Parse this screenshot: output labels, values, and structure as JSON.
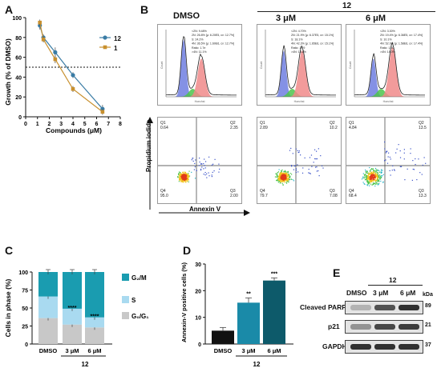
{
  "panels": {
    "A": {
      "label": "A",
      "chart_data": {
        "type": "line",
        "xlabel": "Compounds (μM)",
        "ylabel": "Growth (% of DMSO)",
        "xlim": [
          0,
          8
        ],
        "ylim": [
          0,
          100
        ],
        "xticks": [
          "0",
          "1",
          "2",
          "3",
          "4",
          "5",
          "6",
          "7",
          "8"
        ],
        "yticks": [
          "0",
          "20",
          "40",
          "60",
          "80",
          "100"
        ],
        "reference_line": 50,
        "series": [
          {
            "name": "12",
            "color": "#3a7ca5",
            "x": [
              1.2,
              1.5,
              2.5,
              4.0,
              6.5
            ],
            "y": [
              92,
              80,
              65,
              42,
              8
            ],
            "err": [
              4,
              3,
              5,
              3,
              4
            ]
          },
          {
            "name": "1",
            "color": "#c8902e",
            "x": [
              1.2,
              1.5,
              2.5,
              4.0,
              6.5
            ],
            "y": [
              95,
              78,
              58,
              28,
              5
            ],
            "err": [
              3,
              3,
              4,
              3,
              3
            ]
          }
        ]
      }
    },
    "B": {
      "label": "B",
      "group_label": "12",
      "conditions": [
        "DMSO",
        "3 μM",
        "6 μM"
      ],
      "hist_ylabel": "Count",
      "hist_xlabel": "Hoechst",
      "stats": [
        [
          "<2N: 9.48%",
          "2N: 26.8%  [μ: 6.20E5, cv: 12.7%]",
          "S: 24.2%",
          "4N: 36.5%  [μ: 1.60E6, cv: 12.7%]",
          "Ratio: 1.7e",
          ">4N: 11.1%"
        ],
        [
          "<2N: 4.70%",
          "2N: 21.9%  [μ: 6.37E5, cv: 15.1%]",
          "S: 18.1%",
          "4N: 42.3%  [μ: 1.65E6, cv: 15.1%]",
          "Ratio: 1.79",
          ">4N: 13.1%"
        ],
        [
          "<2N: 3.30%",
          "2N: 19.4%  [μ: 6.36E5, cv: 17.4%]",
          "S: 10.1%",
          "4N: 52.9%  [μ: 1.58E6, cv: 17.4%]",
          "Ratio: 1.70",
          ">4N: 14.0%"
        ]
      ],
      "scatter_ylabel": "Propidium iodide",
      "scatter_xlabel": "Annexin V",
      "quadrants": [
        {
          "Q1": "0.64",
          "Q2": "2.35",
          "Q3": "2.00",
          "Q4": "95.0"
        },
        {
          "Q1": "2.89",
          "Q2": "10.2",
          "Q3": "7.08",
          "Q4": "79.7"
        },
        {
          "Q1": "4.84",
          "Q2": "13.5",
          "Q3": "13.3",
          "Q4": "68.4"
        }
      ],
      "qlabels": [
        "Q1",
        "Q2",
        "Q3",
        "Q4"
      ]
    },
    "C": {
      "label": "C",
      "chart_data": {
        "type": "bar",
        "stacked": true,
        "ylabel": "Cells in phase (%)",
        "ylim": [
          0,
          100
        ],
        "yticks": [
          "0",
          "25",
          "50",
          "75",
          "100"
        ],
        "categories": [
          "DMSO",
          "3 μM",
          "6 μM"
        ],
        "group_label": "12",
        "series": [
          {
            "name": "G₀/G₁",
            "color": "#c8c8c8",
            "values": [
              36,
              27,
              23
            ]
          },
          {
            "name": "S",
            "color": "#a9daf0",
            "values": [
              30,
              22,
              14
            ]
          },
          {
            "name": "G₂/M",
            "color": "#1a9cb0",
            "values": [
              34,
              51,
              63
            ]
          }
        ],
        "significance": [
          "",
          "****",
          "****"
        ]
      }
    },
    "D": {
      "label": "D",
      "chart_data": {
        "type": "bar",
        "ylabel": "Annexin-V positive cells (%)",
        "ylim": [
          0,
          30
        ],
        "yticks": [
          "0",
          "10",
          "20",
          "30"
        ],
        "categories": [
          "DMSO",
          "3 μM",
          "6 μM"
        ],
        "group_label": "12",
        "values": [
          5,
          15.5,
          23.8
        ],
        "errors": [
          1.2,
          1.8,
          1.0
        ],
        "colors": [
          "#111111",
          "#1a8aa8",
          "#0d5a6a"
        ],
        "significance": [
          "",
          "**",
          "***"
        ]
      }
    },
    "E": {
      "label": "E",
      "group_label": "12",
      "lanes": [
        "DMSO",
        "3 μM",
        "6 μM"
      ],
      "kda_label": "kDa",
      "blots": [
        {
          "name": "Cleaved PARP-1",
          "kda": "89"
        },
        {
          "name": "p21",
          "kda": "21"
        },
        {
          "name": "GAPDH",
          "kda": "37"
        }
      ]
    }
  }
}
